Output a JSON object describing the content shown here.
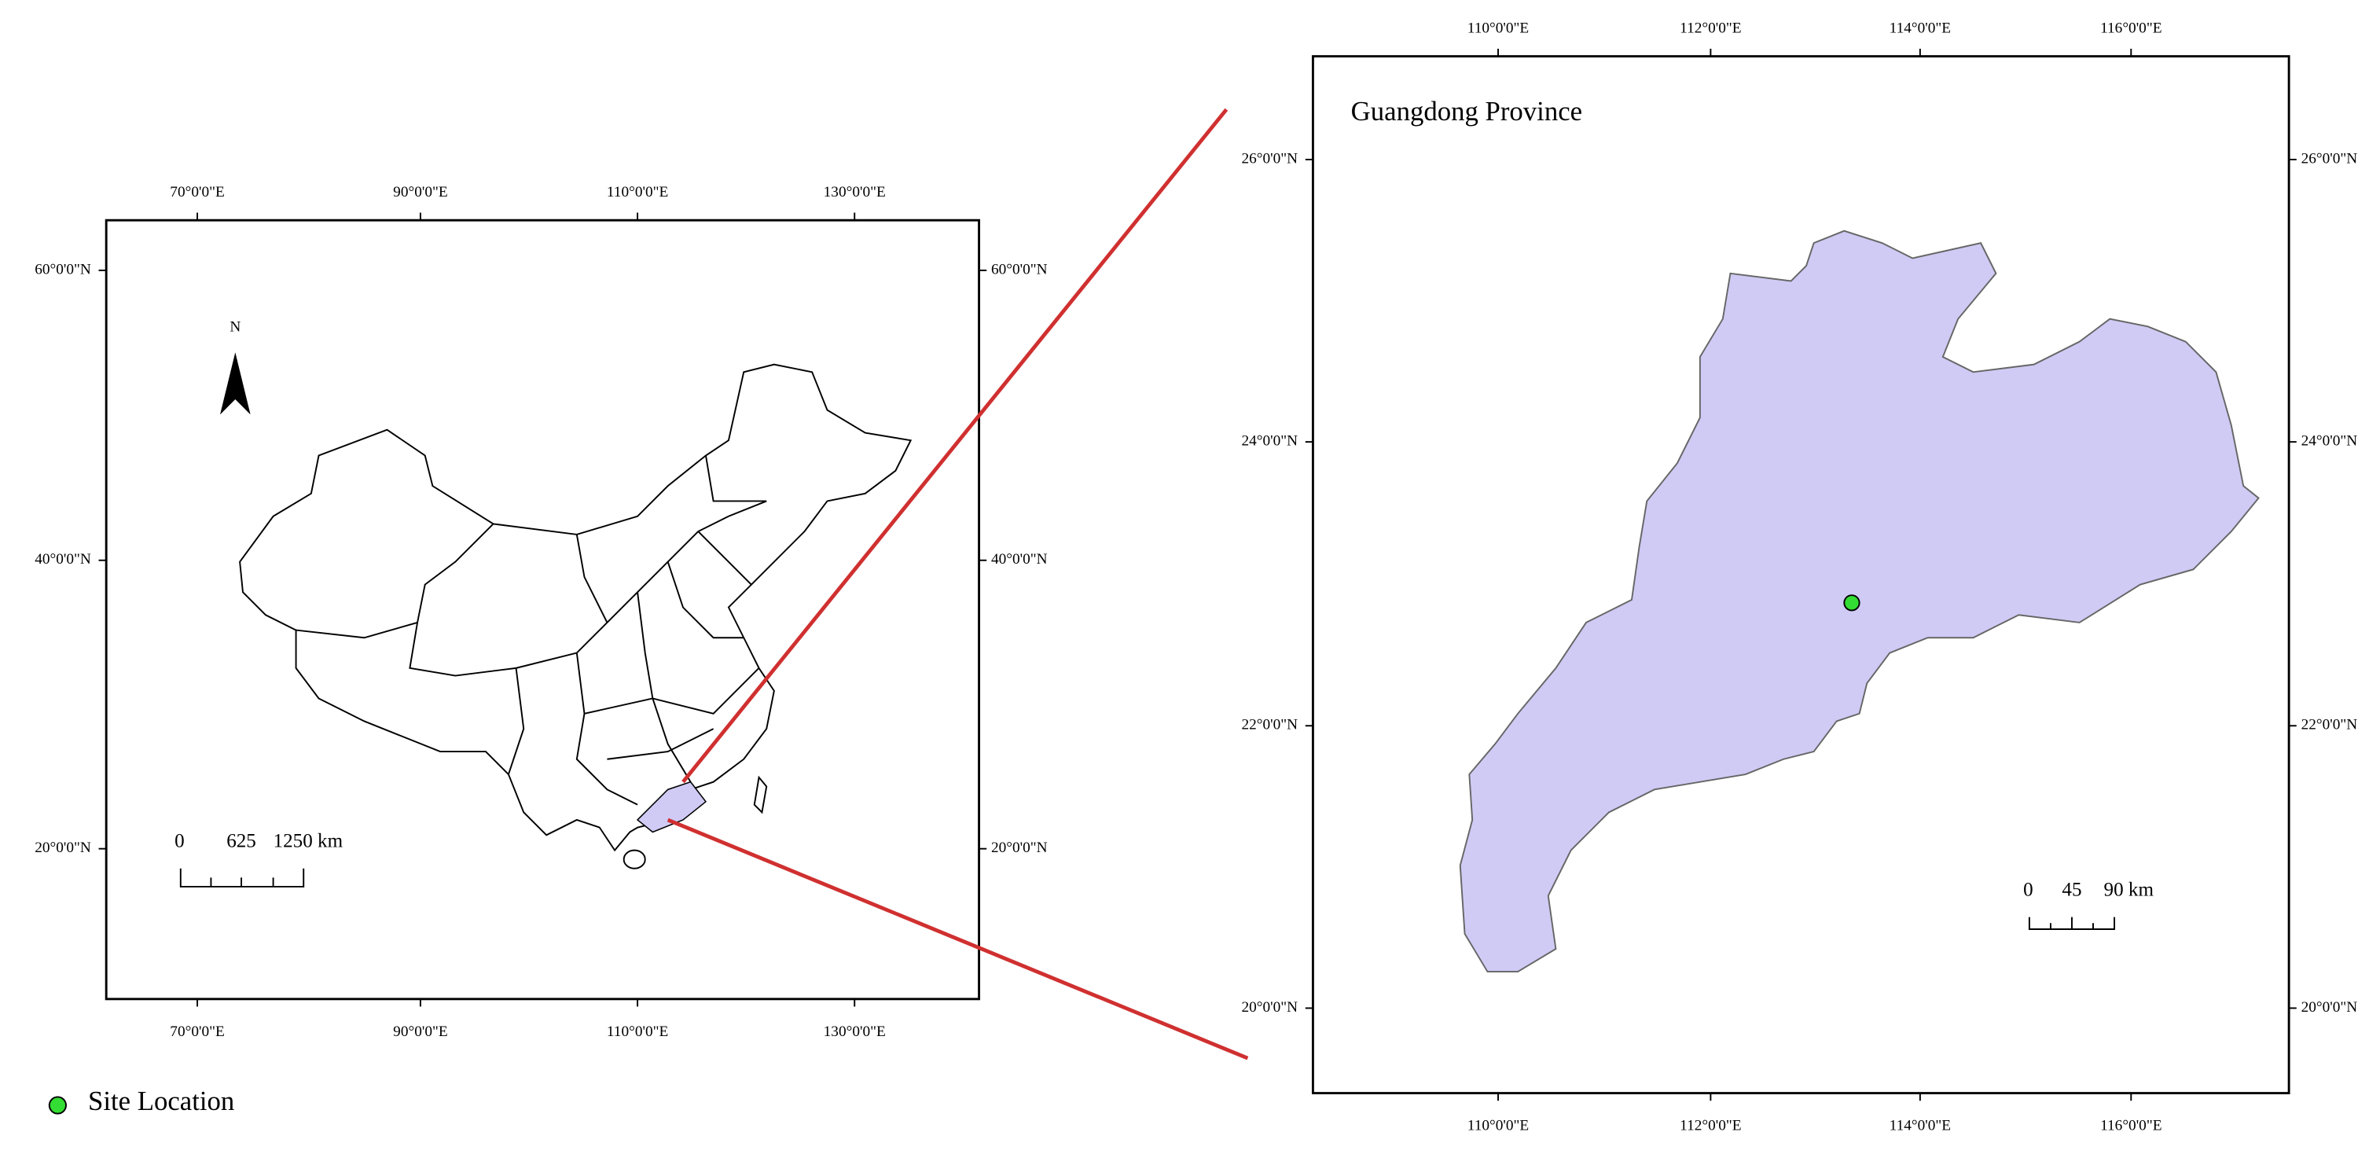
{
  "left_map": {
    "x_labels": [
      "70°0'0\"E",
      "90°0'0\"E",
      "110°0'0\"E",
      "130°0'0\"E"
    ],
    "y_labels": [
      "60°0'0\"N",
      "40°0'0\"N",
      "20°0'0\"N"
    ],
    "north": "N",
    "scale_labels": [
      "0",
      "625",
      "1250 km"
    ]
  },
  "right_map": {
    "title": "Guangdong Province",
    "x_labels": [
      "110°0'0\"E",
      "112°0'0\"E",
      "114°0'0\"E",
      "116°0'0\"E"
    ],
    "y_labels": [
      "26°0'0\"N",
      "24°0'0\"N",
      "22°0'0\"N",
      "20°0'0\"N"
    ],
    "scale_labels": [
      "0",
      "45",
      "90 km"
    ]
  },
  "legend": {
    "label": "Site Location"
  }
}
